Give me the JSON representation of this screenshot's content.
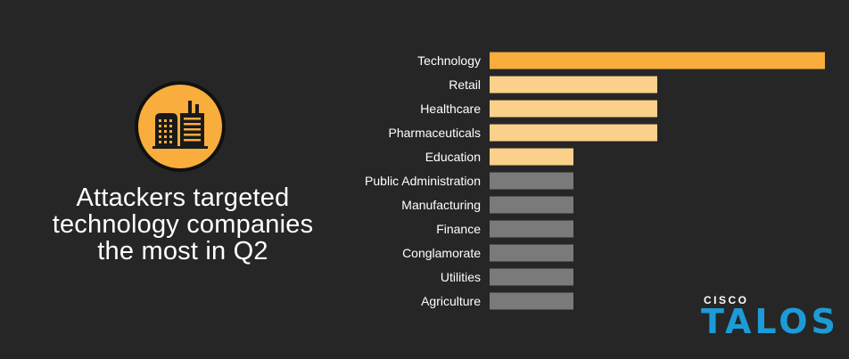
{
  "headline": {
    "lines": [
      "Attackers targeted",
      "technology companies",
      "the most in Q2"
    ]
  },
  "logo": {
    "top": "CISCO",
    "main": "TALOS"
  },
  "icon": "factory-building-icon",
  "colors": {
    "background": "#262626",
    "highlight": "#f8ad3d",
    "secondary": "#fbd08a",
    "muted": "#7a7a7a",
    "brand_blue": "#1c9bd7"
  },
  "chart_data": {
    "type": "bar",
    "orientation": "horizontal",
    "categories": [
      "Technology",
      "Retail",
      "Healthcare",
      "Pharmaceuticals",
      "Education",
      "Public Administration",
      "Manufacturing",
      "Finance",
      "Conglamorate",
      "Utilities",
      "Agriculture"
    ],
    "values": [
      4,
      2,
      2,
      2,
      1,
      1,
      1,
      1,
      1,
      1,
      1
    ],
    "bar_colors": [
      "#f8ad3d",
      "#fbd08a",
      "#fbd08a",
      "#fbd08a",
      "#fbd08a",
      "#7a7a7a",
      "#7a7a7a",
      "#7a7a7a",
      "#7a7a7a",
      "#7a7a7a",
      "#7a7a7a"
    ],
    "title": "",
    "xlabel": "",
    "ylabel": "",
    "xlim": [
      0,
      4
    ],
    "grid": false,
    "legend": "none"
  }
}
